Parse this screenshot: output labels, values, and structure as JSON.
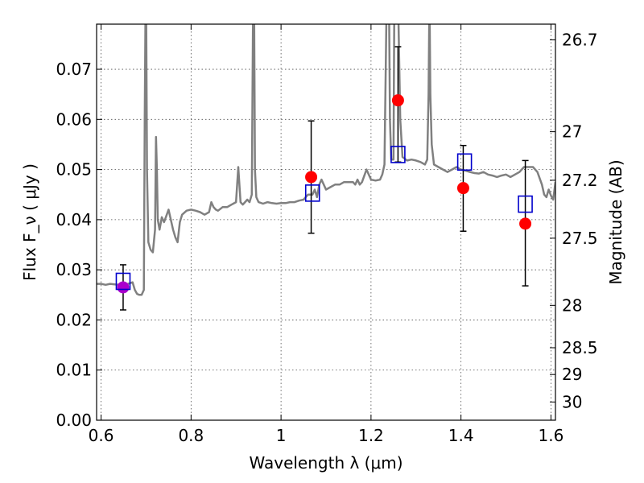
{
  "chart_data": {
    "type": "line",
    "xlabel": "Wavelength λ (μm)",
    "ylabel": "Flux F_ν ( μJy )",
    "y2label": "Magnitude (AB)",
    "xlim": [
      0.59,
      1.61
    ],
    "ylim": [
      0.0,
      0.079
    ],
    "grid": true,
    "x_ticks": [
      {
        "value": 0.6,
        "label": "0.6"
      },
      {
        "value": 0.8,
        "label": "0.8"
      },
      {
        "value": 1.0,
        "label": "1"
      },
      {
        "value": 1.2,
        "label": "1.2"
      },
      {
        "value": 1.4,
        "label": "1.4"
      },
      {
        "value": 1.6,
        "label": "1.6"
      }
    ],
    "y_ticks": [
      {
        "value": 0.0,
        "label": "0.00"
      },
      {
        "value": 0.01,
        "label": "0.01"
      },
      {
        "value": 0.02,
        "label": "0.02"
      },
      {
        "value": 0.03,
        "label": "0.03"
      },
      {
        "value": 0.04,
        "label": "0.04"
      },
      {
        "value": 0.05,
        "label": "0.05"
      },
      {
        "value": 0.06,
        "label": "0.06"
      },
      {
        "value": 0.07,
        "label": "0.07"
      }
    ],
    "y2_ticks": [
      {
        "mag": 26.7,
        "label": "26.7"
      },
      {
        "mag": 27.0,
        "label": "27"
      },
      {
        "mag": 27.2,
        "label": "27.2"
      },
      {
        "mag": 27.5,
        "label": "27.5"
      },
      {
        "mag": 28.0,
        "label": "28"
      },
      {
        "mag": 28.5,
        "label": "28.5"
      },
      {
        "mag": 29.0,
        "label": "29"
      },
      {
        "mag": 30.0,
        "label": "30"
      }
    ],
    "series": [
      {
        "kind": "spectrum",
        "color": "#808080",
        "x": [
          0.59,
          0.6,
          0.61,
          0.62,
          0.63,
          0.64,
          0.65,
          0.66,
          0.67,
          0.675,
          0.68,
          0.685,
          0.69,
          0.695,
          0.697,
          0.699,
          0.7,
          0.702,
          0.705,
          0.71,
          0.715,
          0.72,
          0.722,
          0.724,
          0.726,
          0.73,
          0.735,
          0.74,
          0.75,
          0.755,
          0.76,
          0.765,
          0.77,
          0.775,
          0.78,
          0.79,
          0.8,
          0.81,
          0.82,
          0.83,
          0.84,
          0.845,
          0.85,
          0.855,
          0.86,
          0.87,
          0.88,
          0.89,
          0.9,
          0.905,
          0.91,
          0.915,
          0.92,
          0.925,
          0.93,
          0.935,
          0.938,
          0.94,
          0.942,
          0.945,
          0.95,
          0.96,
          0.97,
          0.98,
          0.99,
          1.0,
          1.01,
          1.02,
          1.03,
          1.04,
          1.05,
          1.06,
          1.07,
          1.075,
          1.08,
          1.085,
          1.09,
          1.095,
          1.1,
          1.11,
          1.12,
          1.13,
          1.14,
          1.15,
          1.16,
          1.165,
          1.17,
          1.175,
          1.18,
          1.19,
          1.2,
          1.21,
          1.22,
          1.225,
          1.23,
          1.235,
          1.238,
          1.24,
          1.242,
          1.245,
          1.25,
          1.252,
          1.255,
          1.26,
          1.265,
          1.27,
          1.28,
          1.29,
          1.3,
          1.31,
          1.32,
          1.325,
          1.328,
          1.33,
          1.332,
          1.335,
          1.34,
          1.35,
          1.36,
          1.37,
          1.38,
          1.39,
          1.4,
          1.41,
          1.42,
          1.43,
          1.44,
          1.45,
          1.46,
          1.47,
          1.48,
          1.49,
          1.5,
          1.51,
          1.52,
          1.53,
          1.54,
          1.55,
          1.56,
          1.57,
          1.58,
          1.585,
          1.59,
          1.595,
          1.6,
          1.605,
          1.61
        ],
        "y": [
          0.0272,
          0.0272,
          0.027,
          0.0272,
          0.0271,
          0.027,
          0.0265,
          0.0272,
          0.0275,
          0.026,
          0.0252,
          0.025,
          0.025,
          0.026,
          0.06,
          0.085,
          0.085,
          0.05,
          0.0355,
          0.034,
          0.0335,
          0.038,
          0.0565,
          0.05,
          0.04,
          0.038,
          0.0405,
          0.0395,
          0.042,
          0.04,
          0.038,
          0.0365,
          0.0355,
          0.0395,
          0.041,
          0.0418,
          0.042,
          0.0418,
          0.0415,
          0.041,
          0.0415,
          0.0435,
          0.0425,
          0.042,
          0.0418,
          0.0425,
          0.0425,
          0.043,
          0.0435,
          0.0505,
          0.0435,
          0.043,
          0.0435,
          0.044,
          0.0435,
          0.045,
          0.085,
          0.085,
          0.05,
          0.0445,
          0.0435,
          0.0432,
          0.0435,
          0.0433,
          0.0432,
          0.0433,
          0.0433,
          0.0435,
          0.0435,
          0.0438,
          0.044,
          0.045,
          0.045,
          0.046,
          0.0445,
          0.047,
          0.048,
          0.047,
          0.046,
          0.0465,
          0.047,
          0.047,
          0.0475,
          0.0475,
          0.0475,
          0.047,
          0.048,
          0.047,
          0.0475,
          0.05,
          0.048,
          0.0478,
          0.048,
          0.049,
          0.051,
          0.085,
          0.085,
          0.085,
          0.06,
          0.052,
          0.052,
          0.085,
          0.085,
          0.085,
          0.06,
          0.0525,
          0.0518,
          0.052,
          0.0518,
          0.0515,
          0.051,
          0.052,
          0.065,
          0.085,
          0.065,
          0.055,
          0.051,
          0.0505,
          0.05,
          0.0495,
          0.05,
          0.0505,
          0.05,
          0.0498,
          0.0495,
          0.0493,
          0.0492,
          0.0495,
          0.049,
          0.0488,
          0.0485,
          0.0488,
          0.049,
          0.0485,
          0.049,
          0.0495,
          0.0505,
          0.0505,
          0.0505,
          0.0495,
          0.047,
          0.045,
          0.0445,
          0.046,
          0.0448,
          0.044,
          0.0475
        ]
      },
      {
        "kind": "observed",
        "color": "#ff0000",
        "x": [
          1.067,
          1.26,
          1.405,
          1.543
        ],
        "y": [
          0.0485,
          0.0638,
          0.0463,
          0.0392
        ],
        "yerr_low": [
          0.0373,
          0.0515,
          0.0377,
          0.0268
        ],
        "yerr_high": [
          0.0597,
          0.0745,
          0.0548,
          0.0518
        ]
      },
      {
        "kind": "observed-single",
        "color": "#aa00cc",
        "x": [
          0.649
        ],
        "y": [
          0.0265
        ],
        "yerr_low": [
          0.022
        ],
        "yerr_high": [
          0.031
        ]
      },
      {
        "kind": "model-bandpass",
        "color": "#0000cc",
        "x": [
          0.649,
          1.07,
          1.26,
          1.408,
          1.543
        ],
        "y": [
          0.0277,
          0.0453,
          0.053,
          0.0515,
          0.0431
        ]
      }
    ]
  }
}
